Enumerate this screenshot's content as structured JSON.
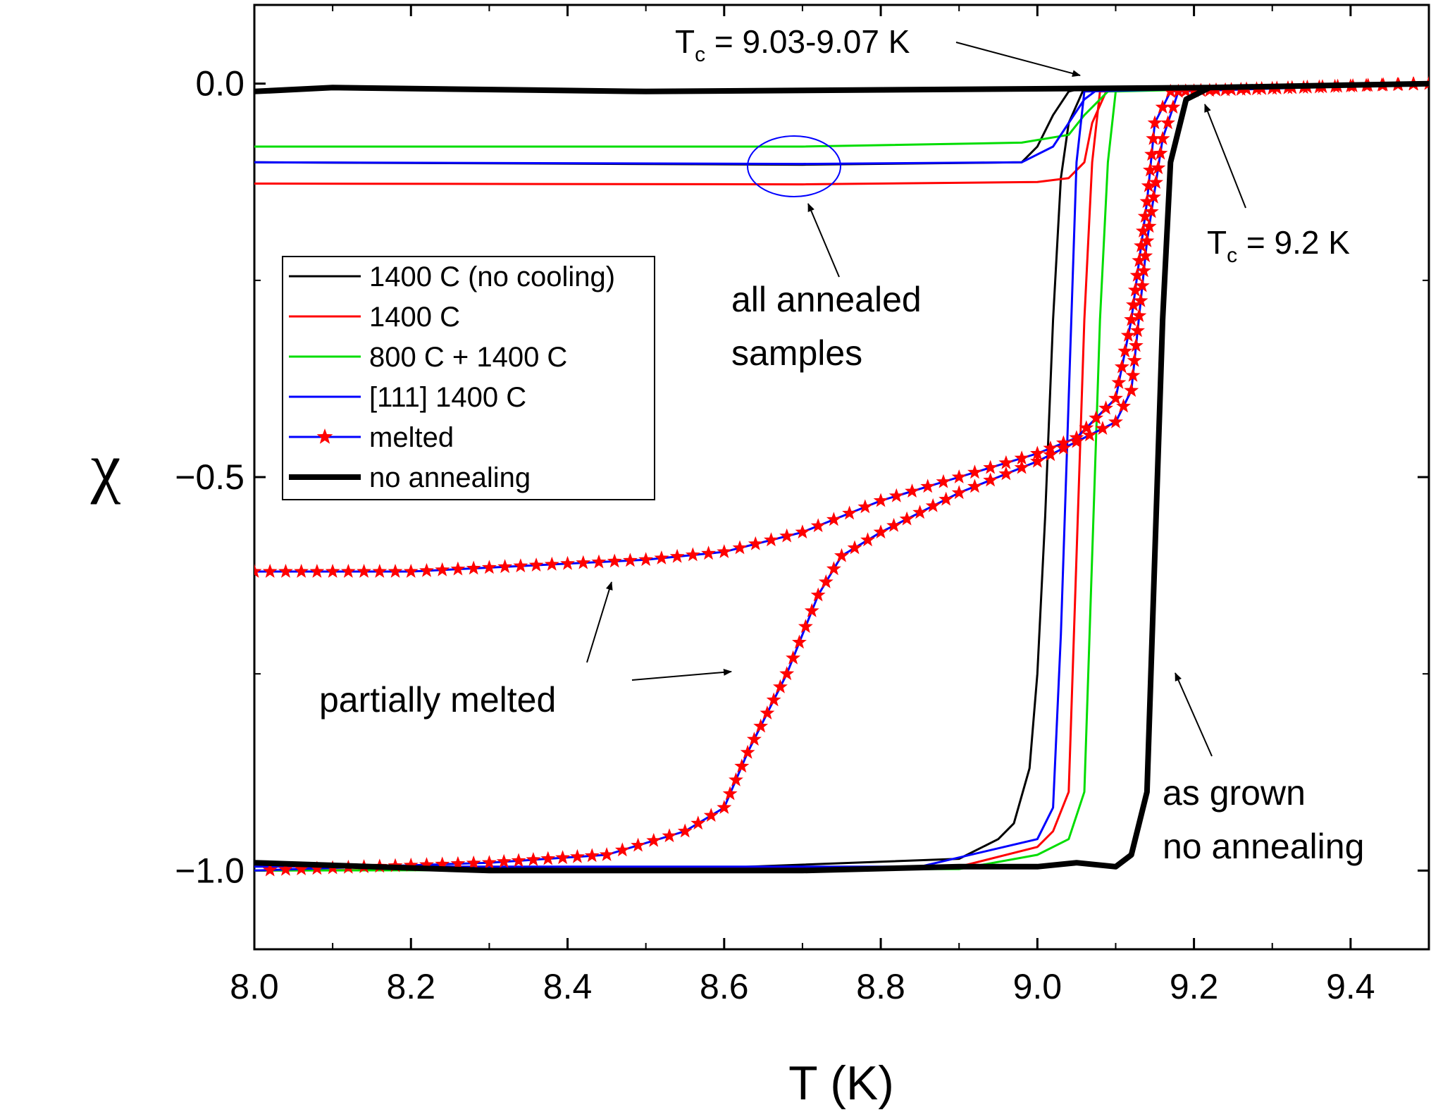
{
  "chart_data": {
    "type": "line",
    "title": "",
    "xlabel": "T (K)",
    "ylabel": "χ",
    "xlim": [
      8.0,
      9.5
    ],
    "ylim": [
      -1.1,
      0.1
    ],
    "xticks": [
      8.0,
      8.2,
      8.4,
      8.6,
      8.8,
      9.0,
      9.2,
      9.4
    ],
    "xtick_labels": [
      "8.0",
      "8.2",
      "8.4",
      "8.6",
      "8.8",
      "9.0",
      "9.2",
      "9.4"
    ],
    "yticks": [
      0.0,
      -0.5,
      -1.0
    ],
    "ytick_labels": [
      "0.0",
      "−0.5",
      "−1.0"
    ],
    "legend_position": "left",
    "series": [
      {
        "name": "1400 C (no cooling)",
        "color": "#000000",
        "style": "thin",
        "points": [
          [
            8.0,
            -0.99
          ],
          [
            8.5,
            -1.0
          ],
          [
            8.9,
            -0.985
          ],
          [
            8.95,
            -0.96
          ],
          [
            8.97,
            -0.94
          ],
          [
            8.99,
            -0.87
          ],
          [
            9.0,
            -0.75
          ],
          [
            9.01,
            -0.55
          ],
          [
            9.02,
            -0.3
          ],
          [
            9.03,
            -0.12
          ],
          [
            9.04,
            -0.05
          ],
          [
            9.06,
            -0.005
          ],
          [
            9.5,
            0.0
          ],
          [
            9.5,
            0.0
          ],
          [
            9.06,
            -0.005
          ],
          [
            9.04,
            -0.01
          ],
          [
            9.02,
            -0.04
          ],
          [
            9.0,
            -0.08
          ],
          [
            8.98,
            -0.1
          ],
          [
            8.7,
            -0.103
          ],
          [
            8.0,
            -0.1
          ]
        ]
      },
      {
        "name": "1400 C",
        "color": "#ff0000",
        "style": "thin",
        "points": [
          [
            8.0,
            -1.0
          ],
          [
            8.9,
            -0.995
          ],
          [
            9.0,
            -0.97
          ],
          [
            9.02,
            -0.95
          ],
          [
            9.04,
            -0.9
          ],
          [
            9.05,
            -0.6
          ],
          [
            9.06,
            -0.3
          ],
          [
            9.07,
            -0.1
          ],
          [
            9.08,
            -0.01
          ],
          [
            9.5,
            0.0
          ],
          [
            9.5,
            0.0
          ],
          [
            9.09,
            -0.005
          ],
          [
            9.07,
            -0.05
          ],
          [
            9.06,
            -0.1
          ],
          [
            9.04,
            -0.12
          ],
          [
            9.0,
            -0.125
          ],
          [
            8.7,
            -0.128
          ],
          [
            8.0,
            -0.127
          ]
        ]
      },
      {
        "name": "800 C + 1400 C",
        "color": "#00dd00",
        "style": "thin",
        "points": [
          [
            8.0,
            -1.0
          ],
          [
            8.9,
            -0.998
          ],
          [
            9.0,
            -0.98
          ],
          [
            9.04,
            -0.96
          ],
          [
            9.06,
            -0.9
          ],
          [
            9.07,
            -0.6
          ],
          [
            9.08,
            -0.3
          ],
          [
            9.09,
            -0.1
          ],
          [
            9.1,
            -0.01
          ],
          [
            9.5,
            0.0
          ],
          [
            9.5,
            0.0
          ],
          [
            9.09,
            -0.01
          ],
          [
            9.06,
            -0.04
          ],
          [
            9.04,
            -0.065
          ],
          [
            8.98,
            -0.075
          ],
          [
            8.7,
            -0.08
          ],
          [
            8.0,
            -0.08
          ]
        ]
      },
      {
        "name": "[111] 1400 C",
        "color": "#0000ff",
        "style": "thin",
        "points": [
          [
            8.0,
            -0.995
          ],
          [
            8.85,
            -0.995
          ],
          [
            9.0,
            -0.96
          ],
          [
            9.02,
            -0.92
          ],
          [
            9.03,
            -0.7
          ],
          [
            9.04,
            -0.4
          ],
          [
            9.05,
            -0.1
          ],
          [
            9.06,
            -0.01
          ],
          [
            9.5,
            0.0
          ],
          [
            9.5,
            0.0
          ],
          [
            9.08,
            -0.005
          ],
          [
            9.06,
            -0.02
          ],
          [
            9.04,
            -0.05
          ],
          [
            9.02,
            -0.08
          ],
          [
            8.98,
            -0.1
          ],
          [
            8.7,
            -0.102
          ],
          [
            8.0,
            -0.1
          ]
        ]
      },
      {
        "name": "melted",
        "color": "#0000ff",
        "marker_color": "#ff0000",
        "style": "stars",
        "points": [
          [
            8.0,
            -0.62
          ],
          [
            8.2,
            -0.62
          ],
          [
            8.4,
            -0.61
          ],
          [
            8.5,
            -0.605
          ],
          [
            8.6,
            -0.595
          ],
          [
            8.7,
            -0.57
          ],
          [
            8.8,
            -0.53
          ],
          [
            8.9,
            -0.5
          ],
          [
            9.0,
            -0.47
          ],
          [
            9.05,
            -0.45
          ],
          [
            9.1,
            -0.4
          ],
          [
            9.12,
            -0.3
          ],
          [
            9.14,
            -0.15
          ],
          [
            9.15,
            -0.05
          ],
          [
            9.17,
            -0.01
          ],
          [
            9.5,
            0.0
          ],
          [
            9.5,
            0.0
          ],
          [
            9.18,
            -0.01
          ],
          [
            9.16,
            -0.07
          ],
          [
            9.14,
            -0.2
          ],
          [
            9.12,
            -0.39
          ],
          [
            9.1,
            -0.43
          ],
          [
            9.0,
            -0.48
          ],
          [
            8.9,
            -0.52
          ],
          [
            8.8,
            -0.57
          ],
          [
            8.75,
            -0.6
          ],
          [
            8.72,
            -0.65
          ],
          [
            8.68,
            -0.75
          ],
          [
            8.63,
            -0.85
          ],
          [
            8.6,
            -0.92
          ],
          [
            8.55,
            -0.95
          ],
          [
            8.45,
            -0.98
          ],
          [
            8.3,
            -0.99
          ],
          [
            8.0,
            -1.0
          ]
        ]
      },
      {
        "name": "no annealing",
        "color": "#000000",
        "style": "thick",
        "points": [
          [
            8.0,
            -0.99
          ],
          [
            8.3,
            -1.0
          ],
          [
            8.7,
            -1.0
          ],
          [
            8.9,
            -0.995
          ],
          [
            9.0,
            -0.995
          ],
          [
            9.05,
            -0.99
          ],
          [
            9.1,
            -0.995
          ],
          [
            9.12,
            -0.98
          ],
          [
            9.14,
            -0.9
          ],
          [
            9.15,
            -0.6
          ],
          [
            9.16,
            -0.3
          ],
          [
            9.17,
            -0.1
          ],
          [
            9.19,
            -0.02
          ],
          [
            9.22,
            -0.005
          ],
          [
            9.5,
            0.0
          ],
          [
            9.5,
            0.0
          ],
          [
            9.22,
            -0.005
          ],
          [
            8.5,
            -0.01
          ],
          [
            8.1,
            -0.005
          ],
          [
            8.0,
            -0.01
          ]
        ]
      }
    ],
    "annotations": {
      "tc_low": "T",
      "tc_low_sub": "c",
      "tc_low_value": " = 9.03-9.07 K",
      "tc_high": "T",
      "tc_high_sub": "c",
      "tc_high_value": " = 9.2 K",
      "annealed_line1": "all annealed",
      "annealed_line2": "samples",
      "partially_melted": "partially melted",
      "as_grown_line1": "as grown",
      "as_grown_line2": "no annealing"
    }
  }
}
